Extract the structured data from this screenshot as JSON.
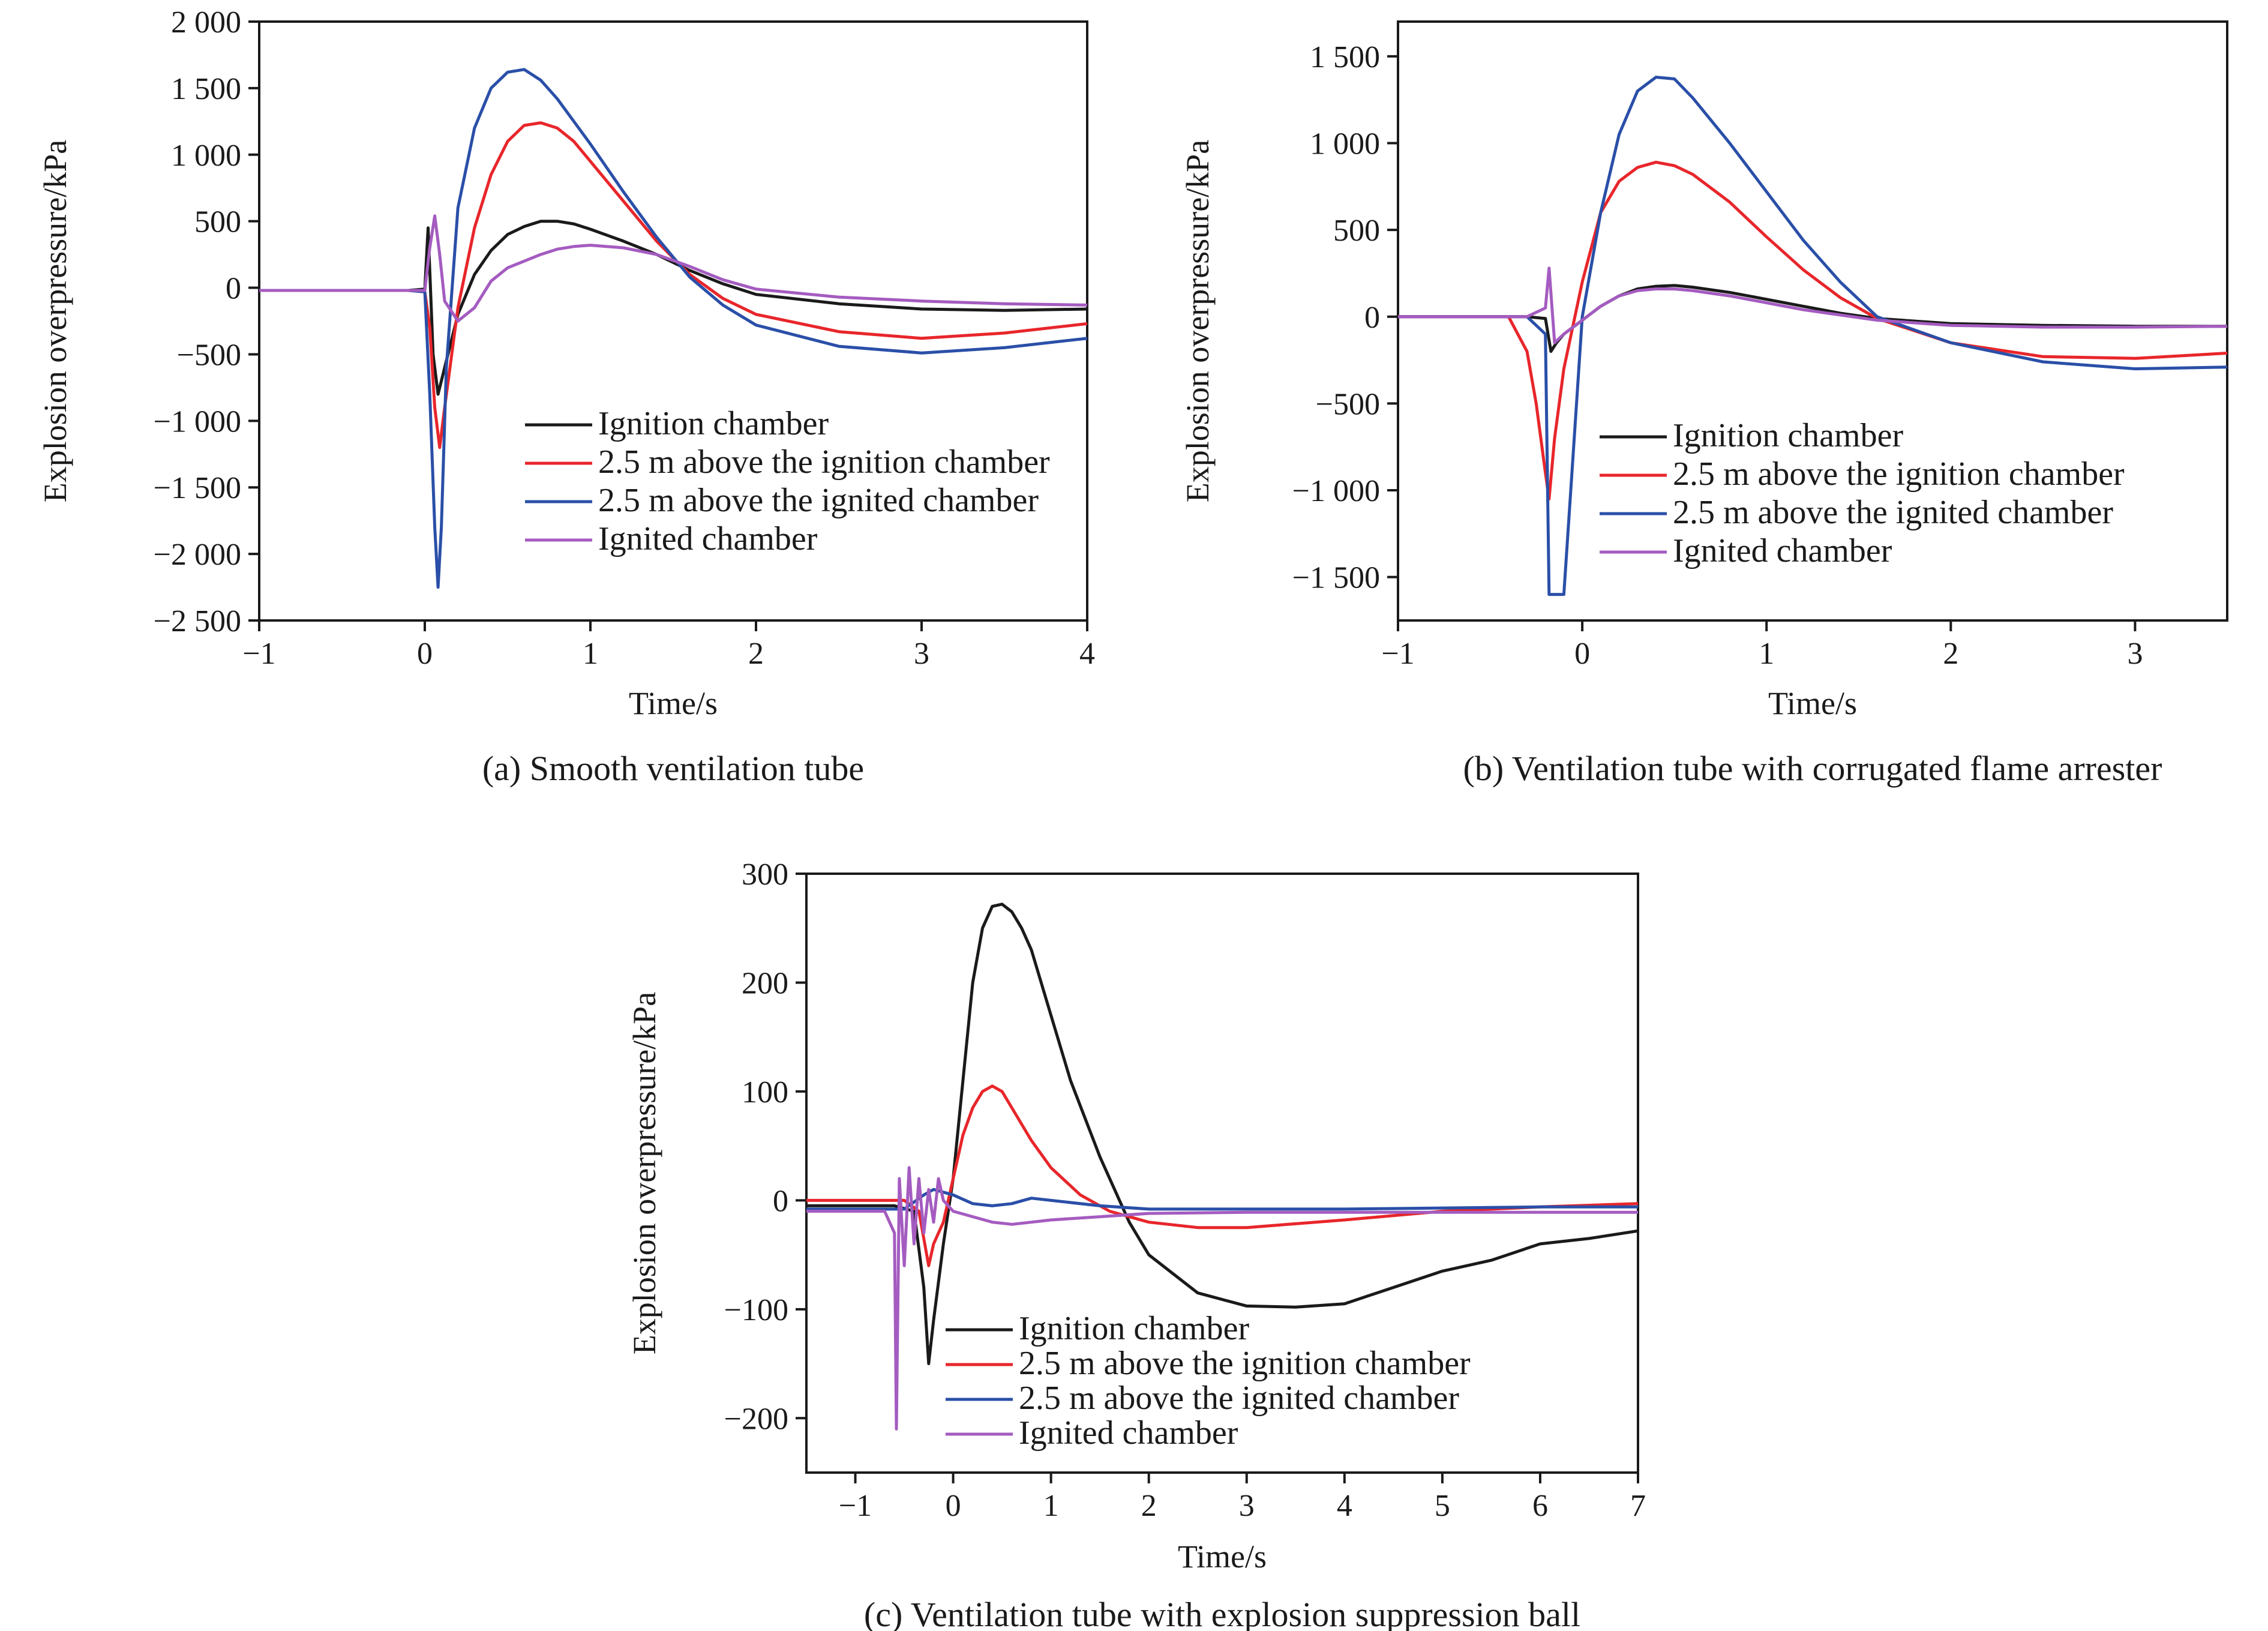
{
  "colors": {
    "ignition": "#1a1a1a",
    "above_ignition": "#e8262b",
    "above_ignited": "#2a4fa8",
    "ignited": "#a45cc0"
  },
  "chart_data": [
    {
      "type": "line",
      "caption": "(a) Smooth ventilation tube",
      "xlabel": "Time/s",
      "ylabel": "Explosion overpressure/kPa",
      "xlim": [
        -1,
        4
      ],
      "ylim": [
        -2500,
        2000
      ],
      "xticks": [
        -1,
        0,
        1,
        2,
        3,
        4
      ],
      "xtick_labels": [
        "−1",
        "0",
        "1",
        "2",
        "3",
        "4"
      ],
      "yticks": [
        -2500,
        -2000,
        -1500,
        -1000,
        -500,
        0,
        500,
        1000,
        1500,
        2000
      ],
      "ytick_labels": [
        "−2 500",
        "−2 000",
        "−1 500",
        "−1 000",
        "−500",
        "0",
        "500",
        "1 000",
        "1 500",
        "2 000"
      ],
      "legend_position": "center-right",
      "series": [
        {
          "name": "Ignition chamber",
          "color_key": "ignition",
          "x": [
            -1,
            -0.1,
            0,
            0.02,
            0.05,
            0.08,
            0.12,
            0.2,
            0.3,
            0.4,
            0.5,
            0.6,
            0.7,
            0.8,
            0.9,
            1.0,
            1.2,
            1.4,
            1.6,
            1.8,
            2.0,
            2.5,
            3.0,
            3.5,
            4.0
          ],
          "y": [
            -20,
            -20,
            -10,
            450,
            -500,
            -800,
            -600,
            -200,
            100,
            280,
            400,
            460,
            500,
            500,
            480,
            440,
            350,
            250,
            130,
            30,
            -50,
            -120,
            -160,
            -170,
            -160
          ]
        },
        {
          "name": "2.5 m above the ignition chamber",
          "color_key": "above_ignition",
          "x": [
            -1,
            -0.1,
            0,
            0.03,
            0.06,
            0.09,
            0.12,
            0.2,
            0.3,
            0.4,
            0.5,
            0.6,
            0.7,
            0.8,
            0.9,
            1.0,
            1.2,
            1.4,
            1.6,
            1.8,
            2.0,
            2.5,
            3.0,
            3.5,
            4.0
          ],
          "y": [
            -20,
            -20,
            -30,
            -300,
            -900,
            -1200,
            -900,
            -150,
            450,
            850,
            1100,
            1220,
            1240,
            1200,
            1100,
            950,
            650,
            350,
            100,
            -80,
            -200,
            -330,
            -380,
            -340,
            -270
          ]
        },
        {
          "name": "2.5 m above the ignited chamber",
          "color_key": "above_ignited",
          "x": [
            -1,
            -0.1,
            0,
            0.03,
            0.06,
            0.08,
            0.1,
            0.13,
            0.2,
            0.3,
            0.4,
            0.5,
            0.6,
            0.7,
            0.8,
            0.9,
            1.0,
            1.2,
            1.4,
            1.6,
            1.8,
            2.0,
            2.5,
            3.0,
            3.5,
            4.0
          ],
          "y": [
            -20,
            -20,
            -30,
            -800,
            -1800,
            -2250,
            -1800,
            -600,
            600,
            1200,
            1500,
            1620,
            1640,
            1560,
            1420,
            1250,
            1080,
            720,
            380,
            80,
            -130,
            -280,
            -440,
            -490,
            -450,
            -380
          ]
        },
        {
          "name": "Ignited chamber",
          "color_key": "ignited",
          "x": [
            -1,
            -0.1,
            0,
            0.03,
            0.06,
            0.09,
            0.12,
            0.2,
            0.3,
            0.4,
            0.5,
            0.6,
            0.7,
            0.8,
            0.9,
            1.0,
            1.2,
            1.4,
            1.6,
            1.8,
            2.0,
            2.5,
            3.0,
            3.5,
            4.0
          ],
          "y": [
            -20,
            -20,
            -20,
            300,
            540,
            250,
            -100,
            -250,
            -150,
            50,
            150,
            200,
            250,
            290,
            310,
            320,
            300,
            250,
            160,
            60,
            -10,
            -70,
            -100,
            -120,
            -130
          ]
        }
      ]
    },
    {
      "type": "line",
      "caption": "(b) Ventilation tube with corrugated flame arrester",
      "xlabel": "Time/s",
      "ylabel": "Explosion overpressure/kPa",
      "xlim": [
        -1,
        3.5
      ],
      "ylim": [
        -1750,
        1700
      ],
      "xticks": [
        -1,
        0,
        1,
        2,
        3
      ],
      "xtick_labels": [
        "−1",
        "0",
        "1",
        "2",
        "3"
      ],
      "yticks": [
        -1500,
        -1000,
        -500,
        0,
        500,
        1000,
        1500
      ],
      "ytick_labels": [
        "−1 500",
        "−1 000",
        "−500",
        "0",
        "500",
        "1 000",
        "1 500"
      ],
      "legend_position": "center-right",
      "series": [
        {
          "name": "Ignition chamber",
          "color_key": "ignition",
          "x": [
            -1,
            -0.3,
            -0.2,
            -0.17,
            -0.14,
            -0.1,
            0,
            0.1,
            0.2,
            0.3,
            0.4,
            0.5,
            0.6,
            0.8,
            1.0,
            1.2,
            1.4,
            1.6,
            2.0,
            2.5,
            3.0,
            3.5
          ],
          "y": [
            0,
            0,
            -10,
            -200,
            -150,
            -100,
            -20,
            60,
            120,
            160,
            175,
            180,
            170,
            140,
            100,
            60,
            20,
            -10,
            -40,
            -50,
            -55,
            -55
          ]
        },
        {
          "name": "2.5 m above the ignition chamber",
          "color_key": "above_ignition",
          "x": [
            -1,
            -0.4,
            -0.3,
            -0.25,
            -0.2,
            -0.18,
            -0.15,
            -0.1,
            0,
            0.1,
            0.2,
            0.3,
            0.4,
            0.5,
            0.6,
            0.8,
            1.0,
            1.2,
            1.4,
            1.6,
            2.0,
            2.5,
            3.0,
            3.5
          ],
          "y": [
            0,
            0,
            -200,
            -500,
            -900,
            -1050,
            -700,
            -300,
            200,
            600,
            780,
            860,
            890,
            870,
            820,
            660,
            460,
            270,
            110,
            -10,
            -150,
            -230,
            -240,
            -210
          ]
        },
        {
          "name": "2.5 m above the ignited chamber",
          "color_key": "above_ignited",
          "x": [
            -1,
            -0.3,
            -0.2,
            -0.18,
            -0.15,
            -0.1,
            -0.05,
            0,
            0.1,
            0.2,
            0.3,
            0.4,
            0.5,
            0.6,
            0.8,
            1.0,
            1.2,
            1.4,
            1.6,
            2.0,
            2.5,
            3.0,
            3.5
          ],
          "y": [
            0,
            0,
            -100,
            -1600,
            -1600,
            -1600,
            -800,
            0,
            600,
            1050,
            1300,
            1380,
            1370,
            1260,
            1000,
            720,
            440,
            200,
            0,
            -150,
            -260,
            -300,
            -290
          ]
        },
        {
          "name": "Ignited chamber",
          "color_key": "ignited",
          "x": [
            -1,
            -0.3,
            -0.2,
            -0.18,
            -0.15,
            -0.1,
            0,
            0.1,
            0.2,
            0.3,
            0.4,
            0.5,
            0.6,
            0.8,
            1.0,
            1.2,
            1.4,
            1.6,
            2.0,
            2.5,
            3.0,
            3.5
          ],
          "y": [
            0,
            0,
            50,
            280,
            -150,
            -100,
            -20,
            60,
            120,
            150,
            160,
            160,
            150,
            120,
            80,
            40,
            10,
            -20,
            -50,
            -60,
            -60,
            -55
          ]
        }
      ]
    },
    {
      "type": "line",
      "caption": "(c) Ventilation tube with explosion suppression ball",
      "xlabel": "Time/s",
      "ylabel": "Explosion overpressure/kPa",
      "xlim": [
        -1.5,
        7
      ],
      "ylim": [
        -250,
        300
      ],
      "xticks": [
        -1,
        0,
        1,
        2,
        3,
        4,
        5,
        6,
        7
      ],
      "xtick_labels": [
        "−1",
        "0",
        "1",
        "2",
        "3",
        "4",
        "5",
        "6",
        "7"
      ],
      "yticks": [
        -200,
        -100,
        0,
        100,
        200,
        300
      ],
      "ytick_labels": [
        "−200",
        "−100",
        "0",
        "100",
        "200",
        "300"
      ],
      "legend_position": "bottom-center",
      "series": [
        {
          "name": "Ignition chamber",
          "color_key": "ignition",
          "x": [
            -1.5,
            -0.6,
            -0.4,
            -0.3,
            -0.25,
            -0.2,
            -0.1,
            0,
            0.1,
            0.2,
            0.3,
            0.4,
            0.5,
            0.6,
            0.7,
            0.8,
            1.0,
            1.2,
            1.5,
            1.8,
            2.0,
            2.5,
            3.0,
            3.5,
            4.0,
            4.5,
            5.0,
            5.5,
            6.0,
            6.5,
            7.0
          ],
          "y": [
            -5,
            -5,
            -10,
            -80,
            -150,
            -110,
            -40,
            20,
            110,
            200,
            250,
            270,
            272,
            265,
            250,
            230,
            170,
            110,
            40,
            -20,
            -50,
            -85,
            -97,
            -98,
            -95,
            -80,
            -65,
            -55,
            -40,
            -35,
            -28
          ]
        },
        {
          "name": "2.5 m above the ignition chamber",
          "color_key": "above_ignition",
          "x": [
            -1.5,
            -0.5,
            -0.35,
            -0.25,
            -0.2,
            -0.1,
            0,
            0.1,
            0.2,
            0.3,
            0.4,
            0.5,
            0.6,
            0.8,
            1.0,
            1.3,
            1.6,
            2.0,
            2.5,
            3.0,
            4.0,
            5.0,
            6.0,
            7.0
          ],
          "y": [
            0,
            0,
            -10,
            -60,
            -40,
            -20,
            20,
            60,
            85,
            100,
            105,
            100,
            85,
            55,
            30,
            5,
            -10,
            -20,
            -25,
            -25,
            -18,
            -10,
            -6,
            -3
          ]
        },
        {
          "name": "2.5 m above the ignited chamber",
          "color_key": "above_ignited",
          "x": [
            -1.5,
            -0.6,
            -0.5,
            -0.3,
            -0.2,
            0,
            0.2,
            0.4,
            0.6,
            0.8,
            1.0,
            1.5,
            2.0,
            3.0,
            4.0,
            5.0,
            6.0,
            7.0
          ],
          "y": [
            -8,
            -8,
            -8,
            5,
            10,
            5,
            -3,
            -5,
            -3,
            2,
            0,
            -5,
            -8,
            -8,
            -8,
            -7,
            -6,
            -6
          ]
        },
        {
          "name": "Ignited chamber",
          "color_key": "ignited",
          "x": [
            -1.5,
            -0.7,
            -0.6,
            -0.58,
            -0.55,
            -0.5,
            -0.45,
            -0.4,
            -0.35,
            -0.3,
            -0.25,
            -0.2,
            -0.15,
            -0.1,
            0,
            0.2,
            0.4,
            0.6,
            0.8,
            1.0,
            1.5,
            2.0,
            3.0,
            4.0,
            5.0,
            6.0,
            7.0
          ],
          "y": [
            -10,
            -10,
            -30,
            -210,
            20,
            -60,
            30,
            -40,
            20,
            -30,
            10,
            -20,
            20,
            0,
            -10,
            -15,
            -20,
            -22,
            -20,
            -18,
            -15,
            -12,
            -11,
            -11,
            -11,
            -11,
            -11
          ]
        }
      ]
    }
  ]
}
